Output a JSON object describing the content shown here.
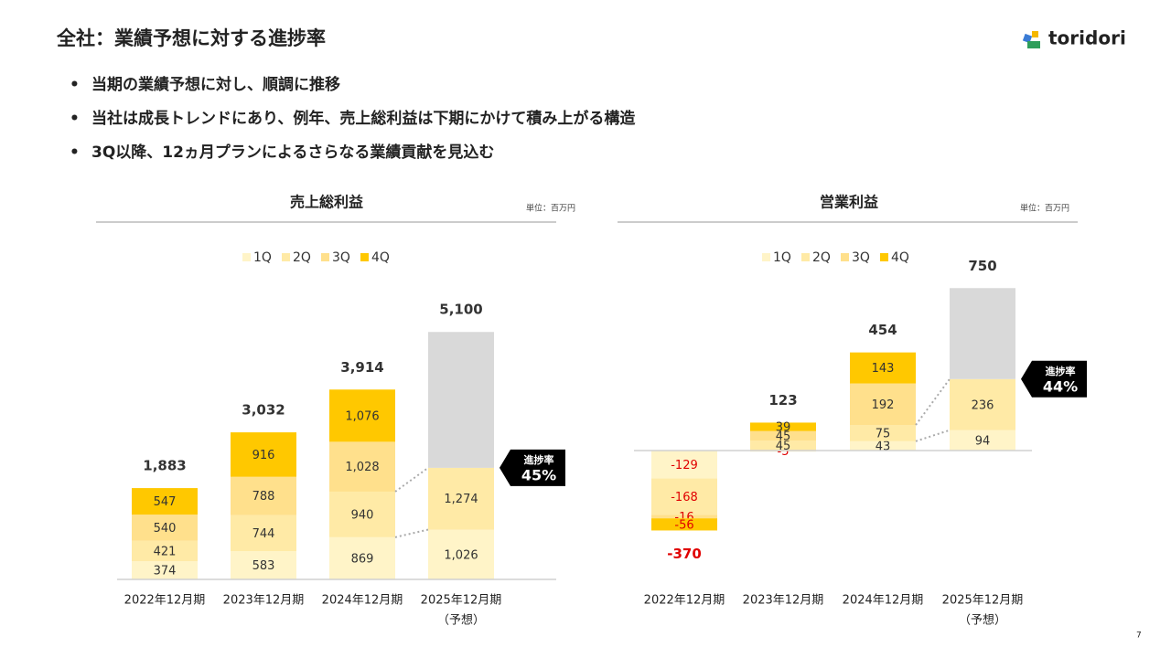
{
  "title": "全社：業績予想に対する進捗率",
  "logo": "toridori",
  "bullets": [
    "当期の業績予想に対し、順調に推移",
    "当社は成長トレンドにあり、例年、売上総利益は下期にかけて積み上がる構造",
    "3Q以降、12ヵ月プランによるさらなる業績貢献を見込む"
  ],
  "page_number": "7",
  "chart_data": [
    {
      "type": "bar",
      "stacked": true,
      "title": "売上総利益",
      "unit_label": "単位：百万円",
      "categories": [
        "2022年12月期",
        "2023年12月期",
        "2024年12月期",
        "2025年12月期"
      ],
      "category_notes": [
        null,
        null,
        null,
        "（予想）"
      ],
      "series": [
        {
          "name": "1Q",
          "color": "#fff4c8",
          "values": [
            374,
            583,
            869,
            1026
          ],
          "value_labels": [
            "374",
            "583",
            "869",
            "1,026"
          ]
        },
        {
          "name": "2Q",
          "color": "#ffeaa6",
          "values": [
            421,
            744,
            940,
            1274
          ],
          "value_labels": [
            "421",
            "744",
            "940",
            "1,274"
          ]
        },
        {
          "name": "3Q",
          "color": "#ffe08c",
          "values": [
            540,
            788,
            1028,
            null
          ],
          "value_labels": [
            "540",
            "788",
            "1,028",
            null
          ]
        },
        {
          "name": "4Q",
          "color": "#ffc800",
          "values": [
            547,
            916,
            1076,
            null
          ],
          "value_labels": [
            "547",
            "916",
            "1,076",
            null
          ]
        },
        {
          "color": "#d9d9d9",
          "values": [
            null,
            null,
            null,
            2800
          ]
        }
      ],
      "totals": {
        "values": [
          1883,
          3032,
          3914,
          5100
        ],
        "value_labels": [
          "1,883",
          "3,032",
          "3,914",
          "5,100"
        ]
      },
      "progress": {
        "label": "進捗率",
        "value": 45,
        "value_label": "45%"
      },
      "ylim": [
        0,
        5500
      ]
    },
    {
      "type": "bar",
      "stacked": true,
      "title": "営業利益",
      "unit_label": "単位：百万円",
      "categories": [
        "2022年12月期",
        "2023年12月期",
        "2024年12月期",
        "2025年12月期"
      ],
      "category_notes": [
        null,
        null,
        null,
        "（予想）"
      ],
      "series": [
        {
          "name": "1Q",
          "color": "#fff4c8",
          "values": [
            -129,
            -5,
            43,
            94
          ]
        },
        {
          "name": "2Q",
          "color": "#ffeaa6",
          "values": [
            -168,
            45,
            75,
            236
          ]
        },
        {
          "name": "3Q",
          "color": "#ffe08c",
          "values": [
            -16,
            45,
            192,
            null
          ]
        },
        {
          "name": "4Q",
          "color": "#ffc800",
          "values": [
            -56,
            39,
            143,
            null
          ]
        },
        {
          "color": "#d9d9d9",
          "values": [
            null,
            null,
            null,
            420
          ]
        }
      ],
      "totals": {
        "values": [
          -370,
          123,
          454,
          750
        ]
      },
      "progress": {
        "label": "進捗率",
        "value": 44,
        "value_label": "44%"
      },
      "ylim": [
        -400,
        800
      ]
    }
  ]
}
